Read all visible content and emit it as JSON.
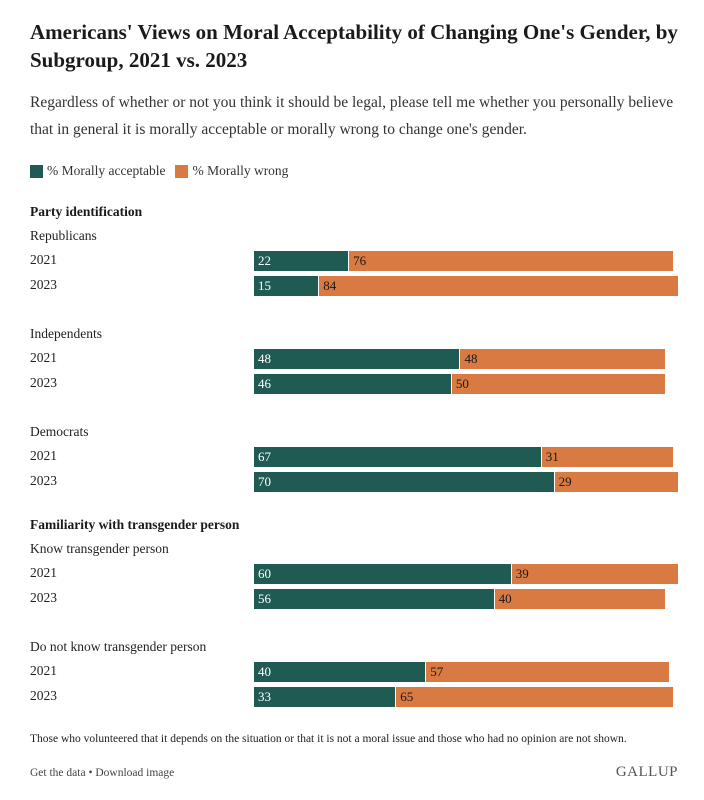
{
  "title": "Americans' Views on Moral Acceptability of Changing One's Gender, by Subgroup, 2021 vs. 2023",
  "subtitle": "Regardless of whether or not you think it should be legal, please tell me whether you personally believe that in general it is morally acceptable or morally wrong to change one's gender.",
  "legend": {
    "acceptable": "% Morally acceptable",
    "wrong": "% Morally wrong"
  },
  "colors": {
    "acceptable": "#1f5b53",
    "wrong": "#d87a42"
  },
  "note": "Those who volunteered that it depends on the situation or that it is not a moral issue and those who had no opinion are not shown.",
  "footer": {
    "get_data": "Get the data",
    "separator": "•",
    "download": "Download image",
    "brand": "GALLUP"
  },
  "chart_data": {
    "type": "bar",
    "orientation": "horizontal",
    "stacked": true,
    "xlim": [
      0,
      100
    ],
    "groups": [
      {
        "header": "Party identification",
        "subgroups": [
          {
            "label": "Republicans",
            "rows": [
              {
                "year": "2021",
                "acceptable": 22,
                "wrong": 76
              },
              {
                "year": "2023",
                "acceptable": 15,
                "wrong": 84
              }
            ]
          },
          {
            "label": "Independents",
            "rows": [
              {
                "year": "2021",
                "acceptable": 48,
                "wrong": 48
              },
              {
                "year": "2023",
                "acceptable": 46,
                "wrong": 50
              }
            ]
          },
          {
            "label": "Democrats",
            "rows": [
              {
                "year": "2021",
                "acceptable": 67,
                "wrong": 31
              },
              {
                "year": "2023",
                "acceptable": 70,
                "wrong": 29
              }
            ]
          }
        ]
      },
      {
        "header": "Familiarity with transgender person",
        "subgroups": [
          {
            "label": "Know transgender person",
            "rows": [
              {
                "year": "2021",
                "acceptable": 60,
                "wrong": 39
              },
              {
                "year": "2023",
                "acceptable": 56,
                "wrong": 40
              }
            ]
          },
          {
            "label": "Do not know transgender person",
            "rows": [
              {
                "year": "2021",
                "acceptable": 40,
                "wrong": 57
              },
              {
                "year": "2023",
                "acceptable": 33,
                "wrong": 65
              }
            ]
          }
        ]
      }
    ]
  }
}
